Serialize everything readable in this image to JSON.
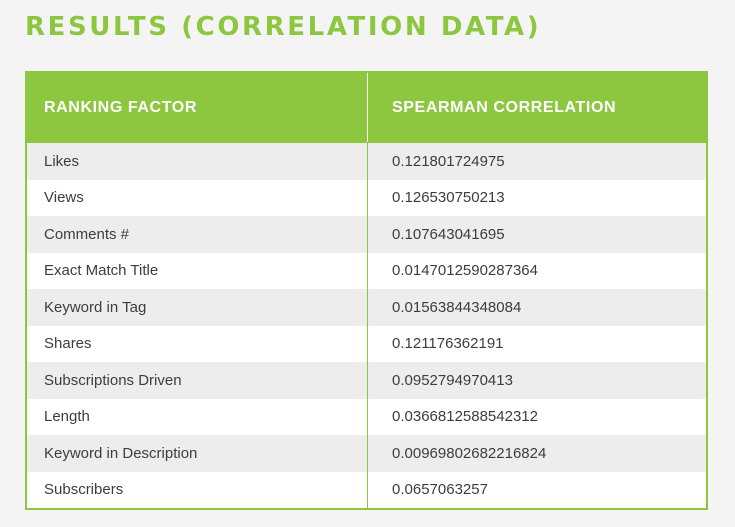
{
  "title": "RESULTS (CORRELATION DATA)",
  "colors": {
    "accent": "#8dc63f",
    "stripe": "#ededed",
    "text": "#3d3d3d"
  },
  "table": {
    "headers": [
      "RANKING FACTOR",
      "SPEARMAN CORRELATION"
    ],
    "rows": [
      {
        "factor": "Likes",
        "value": "0.121801724975"
      },
      {
        "factor": "Views",
        "value": "0.126530750213"
      },
      {
        "factor": "Comments #",
        "value": "0.107643041695"
      },
      {
        "factor": "Exact Match Title",
        "value": "0.0147012590287364"
      },
      {
        "factor": "Keyword in Tag",
        "value": "0.01563844348084"
      },
      {
        "factor": "Shares",
        "value": "0.121176362191"
      },
      {
        "factor": "Subscriptions Driven",
        "value": "0.0952794970413"
      },
      {
        "factor": "Length",
        "value": "0.0366812588542312"
      },
      {
        "factor": "Keyword in Description",
        "value": "0.00969802682216824"
      },
      {
        "factor": "Subscribers",
        "value": "0.0657063257"
      }
    ]
  }
}
